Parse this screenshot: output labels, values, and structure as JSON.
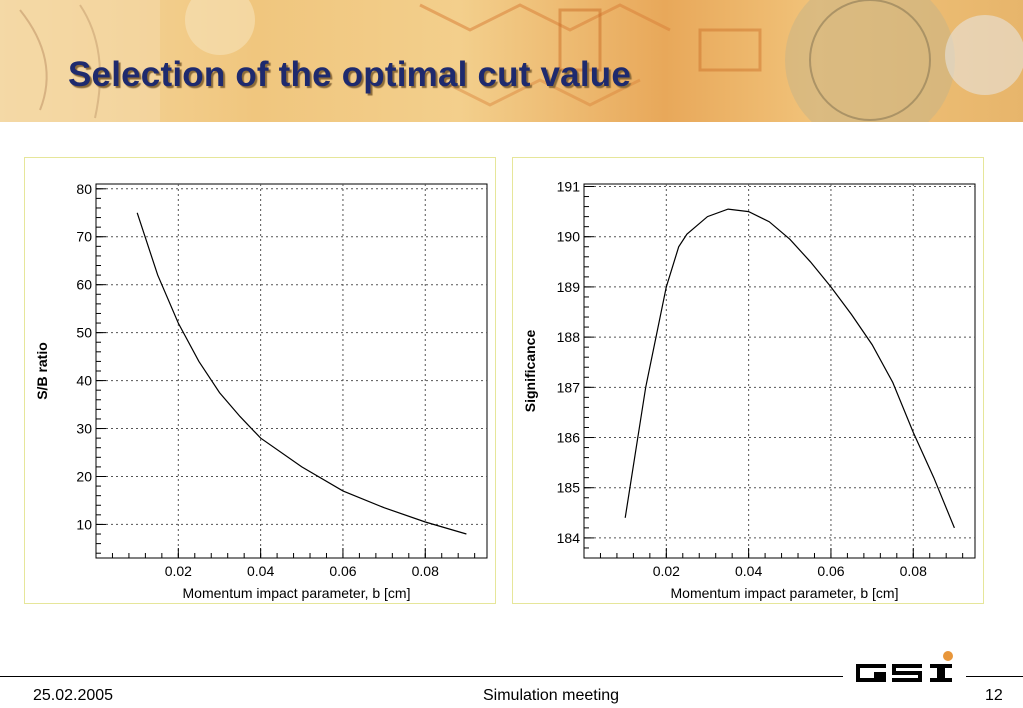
{
  "title": "Selection of the optimal cut value",
  "footer": {
    "date": "25.02.2005",
    "meeting": "Simulation meeting",
    "page": "12"
  },
  "logo": {
    "text": "GSI"
  },
  "colors": {
    "title": "#1e2a6e",
    "banner": "#f0c67e",
    "panel_border": "#e6e69a",
    "logo": "#000000",
    "logo_dot": "#e8963a"
  },
  "chart_data": [
    {
      "type": "line",
      "title": "",
      "xlabel": "Momentum impact parameter, b [cm]",
      "ylabel": "S/B ratio",
      "xlim": [
        0.0,
        0.095
      ],
      "ylim": [
        3,
        81
      ],
      "xticks": [
        "0.02",
        "0.04",
        "0.06",
        "0.08"
      ],
      "yticks": [
        "10",
        "20",
        "30",
        "40",
        "50",
        "60",
        "70",
        "80"
      ],
      "grid": true,
      "x": [
        0.01,
        0.015,
        0.02,
        0.025,
        0.03,
        0.035,
        0.04,
        0.05,
        0.06,
        0.07,
        0.08,
        0.09
      ],
      "y": [
        75,
        62,
        52,
        44,
        37.5,
        32.5,
        28,
        22,
        17,
        13.5,
        10.5,
        8
      ]
    },
    {
      "type": "line",
      "title": "",
      "xlabel": "Momentum impact parameter, b [cm]",
      "ylabel": "Significance",
      "xlim": [
        0.0,
        0.095
      ],
      "ylim": [
        183.6,
        191.05
      ],
      "xticks": [
        "0.02",
        "0.04",
        "0.06",
        "0.08"
      ],
      "yticks": [
        "184",
        "185",
        "186",
        "187",
        "188",
        "189",
        "190",
        "191"
      ],
      "grid": true,
      "x": [
        0.01,
        0.015,
        0.02,
        0.023,
        0.025,
        0.03,
        0.035,
        0.04,
        0.045,
        0.05,
        0.055,
        0.06,
        0.065,
        0.07,
        0.075,
        0.08,
        0.085,
        0.09
      ],
      "y": [
        184.4,
        187.0,
        189.0,
        189.8,
        190.05,
        190.4,
        190.55,
        190.5,
        190.3,
        189.95,
        189.5,
        189.0,
        188.45,
        187.85,
        187.1,
        186.1,
        185.2,
        184.2
      ]
    }
  ]
}
